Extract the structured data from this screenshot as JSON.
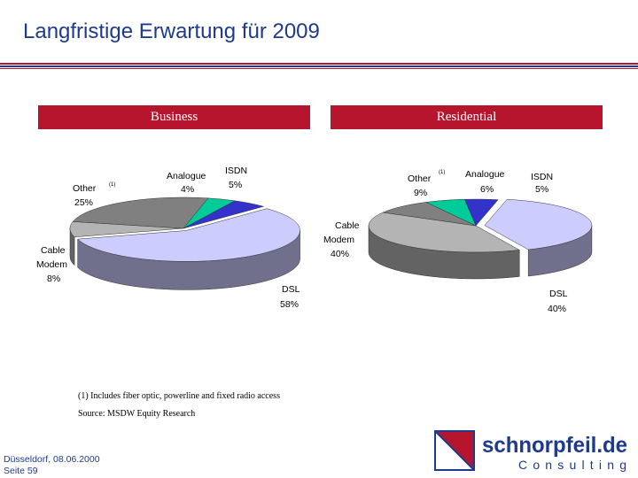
{
  "title": "Langfristige Erwartung für 2009",
  "colors": {
    "brand_red": "#b7152e",
    "brand_blue": "#1e3a8c",
    "dsl": "#ccccff",
    "isdn": "#3333cc",
    "analogue": "#00cc99",
    "other": "#808080",
    "cable_modem": "#b4b4b4"
  },
  "chart_data": [
    {
      "type": "pie",
      "title": "Business",
      "slices": [
        {
          "name": "DSL",
          "value": 58,
          "label": "58%"
        },
        {
          "name": "Cable Modem",
          "value": 8,
          "label": "8%"
        },
        {
          "name": "Other",
          "marker": "(1)",
          "value": 25,
          "label": "25%"
        },
        {
          "name": "Analogue",
          "value": 4,
          "label": "4%"
        },
        {
          "name": "ISDN",
          "value": 5,
          "label": "5%"
        }
      ]
    },
    {
      "type": "pie",
      "title": "Residential",
      "slices": [
        {
          "name": "DSL",
          "value": 40,
          "label": "40%"
        },
        {
          "name": "Cable Modem",
          "value": 40,
          "label": "40%"
        },
        {
          "name": "Other",
          "marker": "(1)",
          "value": 9,
          "label": "9%"
        },
        {
          "name": "Analogue",
          "value": 6,
          "label": "6%"
        },
        {
          "name": "ISDN",
          "value": 5,
          "label": "5%"
        }
      ]
    }
  ],
  "footnote": "(1) Includes fiber optic, powerline and fixed radio access",
  "source": "Source: MSDW Equity Research",
  "footer": {
    "place_date": "Düsseldorf, 08.06.2000",
    "page": "Seite 59"
  },
  "logo": {
    "name": "schnorpfeil.de",
    "tagline": "Consulting"
  }
}
